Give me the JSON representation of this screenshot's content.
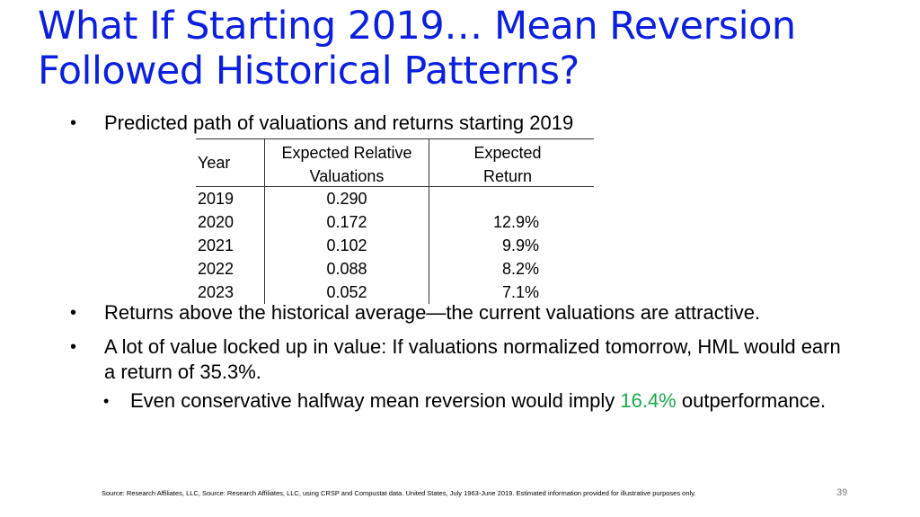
{
  "slide": {
    "title_line1": "What If Starting 2019… Mean Reversion",
    "title_line2": "Followed Historical Patterns?",
    "bullet_glyph": "•",
    "bullet1": "Predicted path of valuations and returns starting 2019",
    "bullet2": "Returns above the historical average—the current valuations are attractive.",
    "bullet3_line1": "A lot of value locked up in value: If valuations normalized tomorrow, HML would earn",
    "bullet3_line2": "a return of 35.3%.",
    "sub_bullet_pre": "Even conservative halfway mean reversion would imply ",
    "sub_bullet_highlight": "16.4%",
    "sub_bullet_post": " outperformance.",
    "highlight_color": "#1aa84a",
    "title_color": "#0a1fe0",
    "source": "Source: Research Affiliates, LLC, Source: Research Affiliates, LLC, using CRSP and Compustat data. United States, July 1963-June 2019. Estimated information provided for illustrative purposes only.",
    "page_number": "39"
  },
  "table": {
    "header_year": "Year",
    "header_val_line1": "Expected Relative",
    "header_val_line2": "Valuations",
    "header_ret_line1": "Expected",
    "header_ret_line2": "Return",
    "rows": [
      {
        "year": "2019",
        "val": "0.290",
        "ret": ""
      },
      {
        "year": "2020",
        "val": "0.172",
        "ret": "12.9%"
      },
      {
        "year": "2021",
        "val": "0.102",
        "ret": "9.9%"
      },
      {
        "year": "2022",
        "val": "0.088",
        "ret": "8.2%"
      },
      {
        "year": "2023",
        "val": "0.052",
        "ret": "7.1%"
      }
    ]
  }
}
